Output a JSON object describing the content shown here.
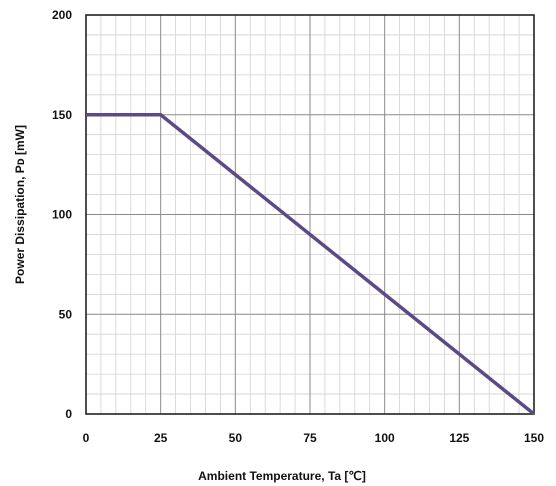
{
  "chart_data": {
    "type": "line",
    "title": "",
    "xlabel": "Ambient Temperature, Ta [℃]",
    "ylabel": "Power Dissipation, Pᴅ [mW]",
    "xlim": [
      0,
      150
    ],
    "ylim": [
      0,
      200
    ],
    "x_ticks": [
      0,
      25,
      50,
      75,
      100,
      125,
      150
    ],
    "y_ticks": [
      0,
      50,
      100,
      150,
      200
    ],
    "grid": true,
    "legend": "none",
    "series": [
      {
        "x": [
          0,
          25,
          150
        ],
        "y": [
          150,
          150,
          0
        ],
        "color": "#5c4a86"
      }
    ]
  }
}
